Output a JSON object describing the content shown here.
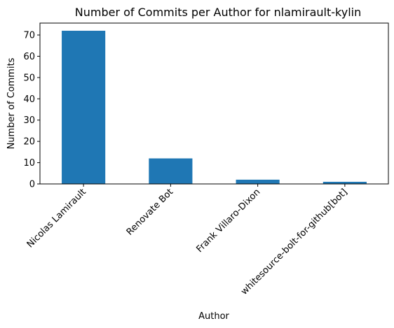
{
  "chart_data": {
    "type": "bar",
    "title": "Number of Commits per Author for nlamirault-kylin",
    "xlabel": "Author",
    "ylabel": "Number of Commits",
    "categories": [
      "Nicolas Lamirault",
      "Renovate Bot",
      "Frank Villaro-Dixon",
      "whitesource-bolt-for-github[bot]"
    ],
    "values": [
      72,
      12,
      2,
      1
    ],
    "yticks": [
      0,
      10,
      20,
      30,
      40,
      50,
      60,
      70
    ],
    "ylim": [
      0,
      75.6
    ],
    "grid": false,
    "bar_color": "#1f77b4"
  }
}
